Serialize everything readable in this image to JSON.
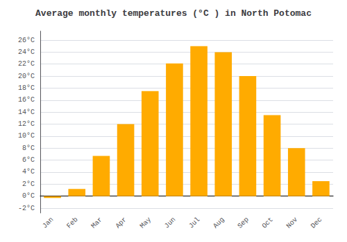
{
  "chart_data": {
    "type": "bar",
    "title": "Average monthly temperatures (°C ) in North Potomac",
    "categories": [
      "Jan",
      "Feb",
      "Mar",
      "Apr",
      "May",
      "Jun",
      "Jul",
      "Aug",
      "Sep",
      "Oct",
      "Nov",
      "Dec"
    ],
    "values": [
      -0.3,
      1.2,
      6.7,
      12.0,
      17.5,
      22.1,
      25.0,
      24.0,
      20.0,
      13.5,
      8.0,
      2.5
    ],
    "color": "#FFAB00",
    "ylim": [
      -2.8,
      27.5
    ],
    "yticks": [
      {
        "value": -2,
        "label": "-2°C"
      },
      {
        "value": 0,
        "label": "0°C"
      },
      {
        "value": 2,
        "label": "2°C"
      },
      {
        "value": 4,
        "label": "4°C"
      },
      {
        "value": 6,
        "label": "6°C"
      },
      {
        "value": 8,
        "label": "8°C"
      },
      {
        "value": 10,
        "label": "10°C"
      },
      {
        "value": 12,
        "label": "12°C"
      },
      {
        "value": 14,
        "label": "14°C"
      },
      {
        "value": 16,
        "label": "16°C"
      },
      {
        "value": 18,
        "label": "18°C"
      },
      {
        "value": 20,
        "label": "20°C"
      },
      {
        "value": 22,
        "label": "22°C"
      },
      {
        "value": 24,
        "label": "24°C"
      },
      {
        "value": 26,
        "label": "26°C"
      }
    ],
    "grid": true
  }
}
